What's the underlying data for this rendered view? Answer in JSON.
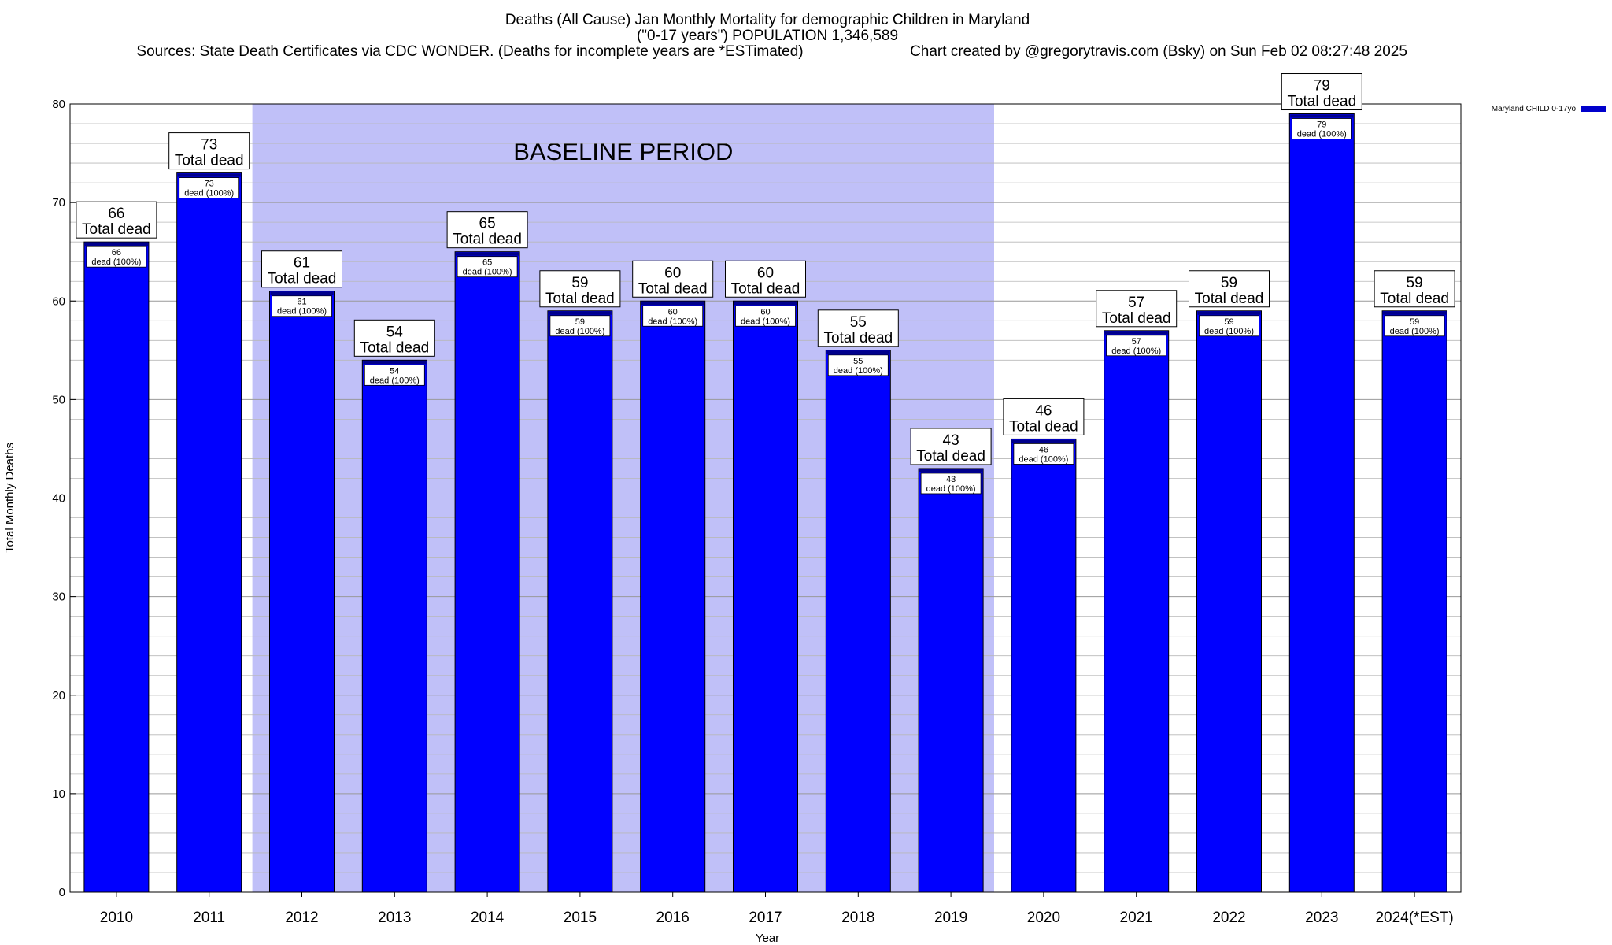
{
  "chart_data": {
    "type": "bar",
    "title": "Deaths (All Cause) Jan Monthly Mortality for demographic Children in Maryland",
    "subtitle": "(\"0-17 years\") POPULATION 1,346,589",
    "sources": "Sources: State Death Certificates via CDC WONDER. (Deaths for incomplete years are *ESTimated)",
    "credit": "Chart created by @gregorytravis.com (Bsky) on Sun Feb 02 08:27:48 2025",
    "xlabel": "Year",
    "ylabel": "Total Monthly Deaths",
    "ylim": [
      0,
      80
    ],
    "y_ticks": [
      0,
      10,
      20,
      30,
      40,
      50,
      60,
      70,
      80
    ],
    "y_minor_step": 2,
    "grid": true,
    "legend": {
      "label": "Maryland CHILD 0-17yo",
      "position": "top-right"
    },
    "baseline": {
      "label": "BASELINE PERIOD",
      "from": "2012",
      "to": "2019"
    },
    "categories": [
      "2010",
      "2011",
      "2012",
      "2013",
      "2014",
      "2015",
      "2016",
      "2017",
      "2018",
      "2019",
      "2020",
      "2021",
      "2022",
      "2023",
      "2024(*EST)"
    ],
    "series": [
      {
        "name": "Maryland CHILD 0-17yo",
        "values": [
          66,
          73,
          61,
          54,
          65,
          59,
          60,
          60,
          55,
          43,
          46,
          57,
          59,
          79,
          59
        ]
      }
    ],
    "total_label": "Total dead",
    "inner_label_suffix": "dead (100%)"
  },
  "colors": {
    "bar": "#0000ff",
    "bar_top": "#00008b",
    "baseline_shade": "#c0c0f8",
    "grid": "#b8b8b8",
    "legend_swatch": "#0000cc"
  }
}
